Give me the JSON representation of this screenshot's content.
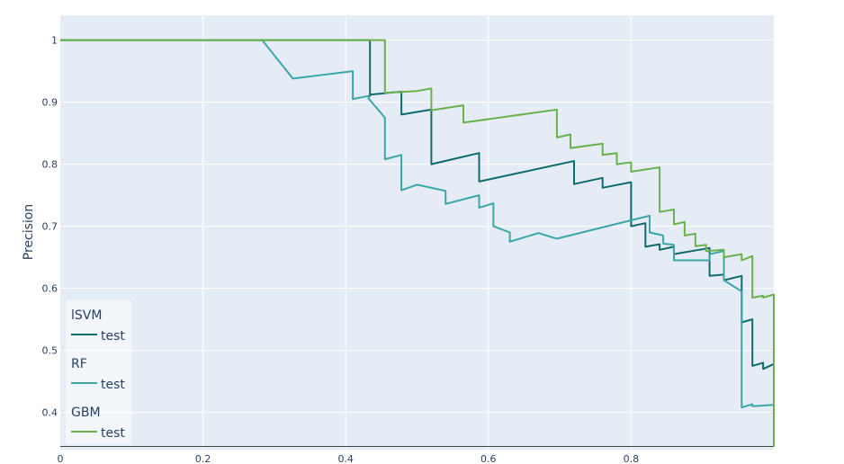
{
  "chart_data": {
    "type": "line",
    "title": "",
    "xlabel": "",
    "ylabel": "Precision",
    "xlim": [
      0,
      1
    ],
    "ylim": [
      0.34,
      1.04
    ],
    "x_ticks": [
      "0",
      "0.2",
      "0.4",
      "0.6",
      "0.8"
    ],
    "x_tick_values": [
      0,
      0.2,
      0.4,
      0.6,
      0.8
    ],
    "y_ticks": [
      "0.4",
      "0.5",
      "0.6",
      "0.7",
      "0.8",
      "0.9",
      "1"
    ],
    "y_tick_values": [
      0.4,
      0.5,
      0.6,
      0.7,
      0.8,
      0.9,
      1.0
    ],
    "grid": true,
    "legend_position": "bottom-left",
    "baseline": 0.345,
    "colors": {
      "plot_bg": "#e5ecf6",
      "grid": "#ffffff",
      "baseline": "#444444"
    },
    "series": [
      {
        "group": "lSVM",
        "name": "test",
        "color": "#0f6b6b",
        "x": [
          0,
          0.434,
          0.434,
          0.434,
          0.478,
          0.478,
          0.52,
          0.52,
          0.587,
          0.587,
          0.72,
          0.72,
          0.76,
          0.76,
          0.8,
          0.8,
          0.82,
          0.82,
          0.84,
          0.84,
          0.86,
          0.86,
          0.91,
          0.91,
          0.93,
          0.93,
          0.955,
          0.955,
          0.97,
          0.97,
          0.985,
          0.985,
          1.0,
          1.0
        ],
        "y": [
          1.0,
          1.0,
          0.91,
          0.912,
          0.917,
          0.88,
          0.888,
          0.8,
          0.818,
          0.772,
          0.805,
          0.768,
          0.778,
          0.762,
          0.771,
          0.7,
          0.705,
          0.667,
          0.671,
          0.662,
          0.667,
          0.655,
          0.665,
          0.62,
          0.622,
          0.613,
          0.62,
          0.545,
          0.55,
          0.475,
          0.48,
          0.47,
          0.478,
          0.345
        ]
      },
      {
        "group": "RF",
        "name": "test",
        "color": "#3aa6a6",
        "x": [
          0,
          0.283,
          0.326,
          0.41,
          0.41,
          0.432,
          0.432,
          0.455,
          0.455,
          0.478,
          0.478,
          0.5,
          0.54,
          0.54,
          0.587,
          0.587,
          0.607,
          0.607,
          0.63,
          0.63,
          0.67,
          0.696,
          0.826,
          0.826,
          0.845,
          0.845,
          0.86,
          0.86,
          0.91,
          0.91,
          0.93,
          0.93,
          0.955,
          0.955,
          0.97,
          0.97,
          1.0,
          1.0
        ],
        "y": [
          1.0,
          1.0,
          0.938,
          0.95,
          0.905,
          0.91,
          0.906,
          0.875,
          0.808,
          0.815,
          0.758,
          0.767,
          0.757,
          0.736,
          0.75,
          0.73,
          0.737,
          0.7,
          0.69,
          0.675,
          0.689,
          0.68,
          0.717,
          0.69,
          0.685,
          0.672,
          0.67,
          0.645,
          0.645,
          0.655,
          0.66,
          0.613,
          0.595,
          0.408,
          0.413,
          0.41,
          0.412,
          0.345
        ]
      },
      {
        "group": "GBM",
        "name": "test",
        "color": "#6ab04c",
        "x": [
          0,
          0.455,
          0.455,
          0.5,
          0.52,
          0.52,
          0.565,
          0.565,
          0.696,
          0.696,
          0.715,
          0.715,
          0.76,
          0.76,
          0.78,
          0.78,
          0.8,
          0.8,
          0.84,
          0.84,
          0.86,
          0.86,
          0.875,
          0.875,
          0.89,
          0.89,
          0.905,
          0.905,
          0.93,
          0.93,
          0.955,
          0.955,
          0.97,
          0.97,
          0.985,
          0.985,
          1.0,
          1.0
        ],
        "y": [
          1.0,
          1.0,
          0.915,
          0.918,
          0.922,
          0.887,
          0.895,
          0.867,
          0.888,
          0.843,
          0.848,
          0.826,
          0.833,
          0.815,
          0.818,
          0.8,
          0.803,
          0.788,
          0.795,
          0.723,
          0.727,
          0.703,
          0.707,
          0.685,
          0.688,
          0.668,
          0.67,
          0.66,
          0.662,
          0.65,
          0.655,
          0.645,
          0.652,
          0.585,
          0.588,
          0.585,
          0.59,
          0.345
        ]
      }
    ]
  }
}
